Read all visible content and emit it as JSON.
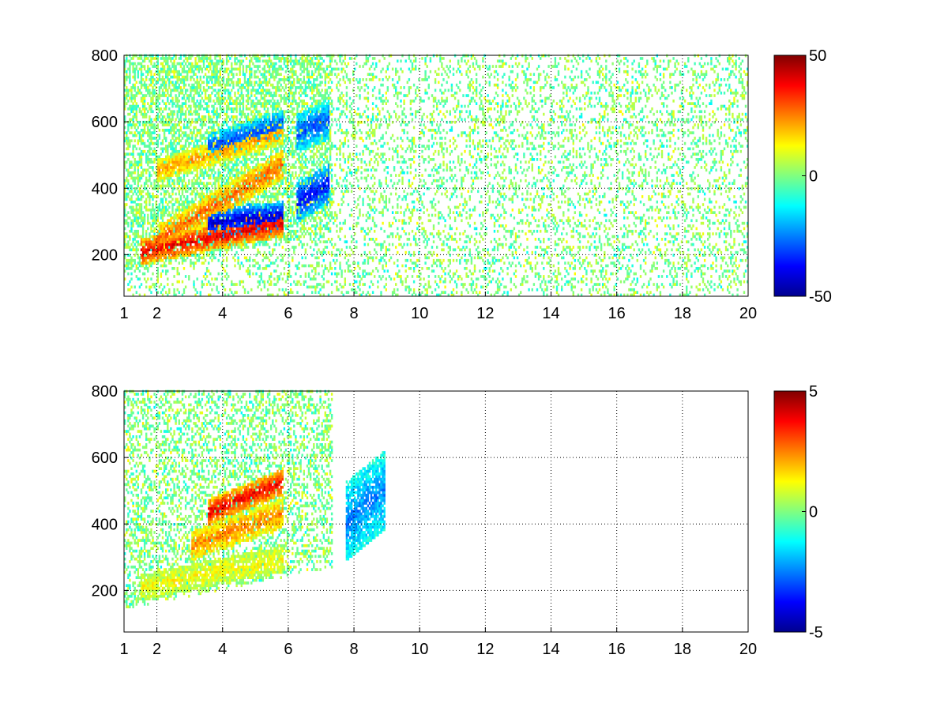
{
  "chart_data": [
    {
      "type": "heatmap",
      "title": "",
      "xlabel": "",
      "ylabel": "",
      "xlim": [
        1,
        20
      ],
      "ylim": [
        75,
        800
      ],
      "xticks": [
        1,
        2,
        4,
        6,
        8,
        10,
        12,
        14,
        16,
        18,
        20
      ],
      "yticks": [
        200,
        400,
        600,
        800
      ],
      "grid": true,
      "colormap": "jet",
      "clim": [
        -50,
        50
      ],
      "colorbar_ticks": [
        50,
        0,
        -50
      ],
      "colorbar_placement": "right",
      "features": [
        {
          "x": [
            1.5,
            5.8
          ],
          "y_at_start": 205,
          "slope": 20,
          "width": 40,
          "value": 40
        },
        {
          "x": [
            2.0,
            5.8
          ],
          "y_at_start": 240,
          "slope": 60,
          "width": 45,
          "value": 28
        },
        {
          "x": [
            3.5,
            5.8
          ],
          "y_at_start": 290,
          "slope": 10,
          "width": 45,
          "value": -42
        },
        {
          "x": [
            2.0,
            5.8
          ],
          "y_at_start": 450,
          "slope": 30,
          "width": 35,
          "value": 22
        },
        {
          "x": [
            3.5,
            5.8
          ],
          "y_at_start": 520,
          "slope": 30,
          "width": 40,
          "value": -30
        },
        {
          "x": [
            6.2,
            7.2
          ],
          "y_at_start": 350,
          "slope": 60,
          "width": 60,
          "value": -38
        },
        {
          "x": [
            6.2,
            7.2
          ],
          "y_at_start": 560,
          "slope": 40,
          "width": 60,
          "value": -30
        }
      ]
    },
    {
      "type": "heatmap",
      "title": "",
      "xlabel": "",
      "ylabel": "",
      "xlim": [
        1,
        20
      ],
      "ylim": [
        75,
        800
      ],
      "xticks": [
        1,
        2,
        4,
        6,
        8,
        10,
        12,
        14,
        16,
        18,
        20
      ],
      "yticks": [
        200,
        400,
        600,
        800
      ],
      "grid": true,
      "colormap": "jet",
      "clim": [
        -5,
        5
      ],
      "colorbar_ticks": [
        5,
        0,
        -5
      ],
      "colorbar_placement": "right",
      "features": [
        {
          "x": [
            1.5,
            5.8
          ],
          "y_at_start": 205,
          "slope": 20,
          "width": 40,
          "value": 1.2
        },
        {
          "x": [
            3.0,
            5.8
          ],
          "y_at_start": 330,
          "slope": 35,
          "width": 45,
          "value": 2.5
        },
        {
          "x": [
            3.5,
            5.8
          ],
          "y_at_start": 430,
          "slope": 40,
          "width": 40,
          "value": 4.0
        },
        {
          "x": [
            7.7,
            8.9
          ],
          "y_at_start": 400,
          "slope": 80,
          "width": 120,
          "value": -2.5
        }
      ]
    }
  ]
}
